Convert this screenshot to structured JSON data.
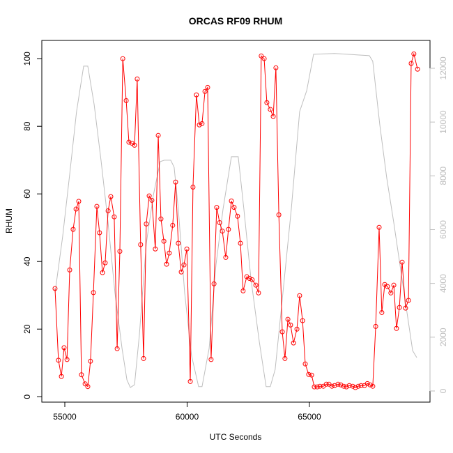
{
  "chart_data": {
    "type": "line",
    "title": "ORCAS RF09 RHUM",
    "xlabel": "UTC Seconds",
    "ylabel": "RHUM",
    "xlim": [
      54060,
      69930
    ],
    "xticks": [
      55000,
      60000,
      65000
    ],
    "ylim": [
      -1.6,
      105.4
    ],
    "yticks": [
      0,
      20,
      40,
      60,
      80,
      100
    ],
    "y2lim": [
      -415,
      13036
    ],
    "y2ticks": [
      0,
      2000,
      4000,
      6000,
      8000,
      10000,
      12000
    ],
    "y2color": "#bebebe",
    "series": [
      {
        "color": "#bebebe",
        "axis": "y2",
        "markers": false,
        "x": [
          54600,
          54910,
          55200,
          55480,
          55770,
          55940,
          56200,
          56480,
          56770,
          57050,
          57340,
          57540,
          57680,
          57850,
          58050,
          58330,
          58620,
          58900,
          59070,
          59330,
          59470,
          59640,
          59900,
          60180,
          60470,
          60610,
          60900,
          61180,
          61470,
          61810,
          62090,
          62320,
          62610,
          62950,
          63230,
          63400,
          63600,
          63890,
          64260,
          64600,
          64890,
          65170,
          66030,
          67450,
          67590,
          67880,
          68160,
          68450,
          68870,
          69220,
          69390
        ],
        "values": [
          3650,
          5730,
          8060,
          10390,
          12080,
          12080,
          10650,
          8580,
          6250,
          3650,
          1580,
          410,
          130,
          230,
          2100,
          5470,
          7280,
          8530,
          8580,
          8580,
          8320,
          6770,
          3650,
          1320,
          160,
          160,
          1580,
          4690,
          6770,
          8710,
          8710,
          6770,
          4170,
          1840,
          160,
          160,
          800,
          3400,
          6770,
          10390,
          11170,
          12520,
          12550,
          12470,
          12260,
          9880,
          7930,
          6250,
          3650,
          1500,
          1240
        ]
      },
      {
        "color": "#ff0000",
        "markers": true,
        "x": [
          54600,
          54740,
          54860,
          54970,
          55090,
          55200,
          55340,
          55460,
          55570,
          55680,
          55830,
          55940,
          56050,
          56170,
          56310,
          56420,
          56540,
          56650,
          56770,
          56880,
          57020,
          57140,
          57250,
          57370,
          57510,
          57620,
          57740,
          57850,
          57960,
          58100,
          58220,
          58330,
          58450,
          58560,
          58700,
          58820,
          58930,
          59050,
          59160,
          59270,
          59410,
          59530,
          59640,
          59760,
          59870,
          59990,
          60130,
          60240,
          60380,
          60500,
          60610,
          60730,
          60840,
          60980,
          61100,
          61210,
          61330,
          61440,
          61580,
          61690,
          61810,
          61920,
          62060,
          62180,
          62290,
          62440,
          62550,
          62660,
          62810,
          62920,
          63030,
          63150,
          63260,
          63400,
          63520,
          63630,
          63750,
          63890,
          64000,
          64120,
          64230,
          64350,
          64490,
          64600,
          64720,
          64830,
          64970,
          65090,
          65200,
          65320,
          65430,
          65570,
          65690,
          65800,
          65920,
          66030,
          66170,
          66280,
          66400,
          66510,
          66630,
          66770,
          66880,
          67000,
          67110,
          67250,
          67370,
          67480,
          67590,
          67710,
          67850,
          67960,
          68080,
          68190,
          68330,
          68450,
          68560,
          68680,
          68790,
          68930,
          69050,
          69160,
          69270,
          69420
        ],
        "values": [
          32,
          10.8,
          6,
          14.5,
          11,
          37.5,
          49.5,
          55.5,
          57.8,
          6.5,
          3.8,
          3,
          10.5,
          30.8,
          56.3,
          48.5,
          36.7,
          39.6,
          55,
          59.2,
          53.2,
          14.2,
          43,
          100,
          87.6,
          75.3,
          75,
          74.4,
          94,
          45,
          11.3,
          51.1,
          59.4,
          58.1,
          43.7,
          77.3,
          52.6,
          46,
          39.2,
          42.5,
          50.7,
          63.5,
          45.4,
          36.9,
          39,
          43.7,
          4.5,
          62,
          89.3,
          80.4,
          80.8,
          90.3,
          91.5,
          11,
          33.4,
          56,
          51.5,
          49,
          41.2,
          49.5,
          57.9,
          56,
          53.4,
          45.4,
          31.3,
          35.5,
          35,
          34.6,
          33,
          30.7,
          100.8,
          100,
          87,
          85,
          82.9,
          97.3,
          53.8,
          19.2,
          11.3,
          22.9,
          21.2,
          15.9,
          20,
          29.9,
          22.5,
          9.7,
          6.6,
          6.4,
          2.9,
          2.9,
          3.1,
          3.1,
          3.7,
          3.7,
          3.1,
          3.3,
          3.7,
          3.5,
          3.1,
          2.9,
          3.3,
          3.1,
          2.7,
          3.1,
          3.3,
          3.3,
          3.9,
          3.5,
          3.1,
          20.8,
          50.1,
          24.9,
          33.2,
          32.6,
          30.7,
          33,
          20.2,
          26.4,
          39.8,
          26.2,
          28.5,
          98.6,
          101.4,
          96.9
        ]
      }
    ]
  }
}
